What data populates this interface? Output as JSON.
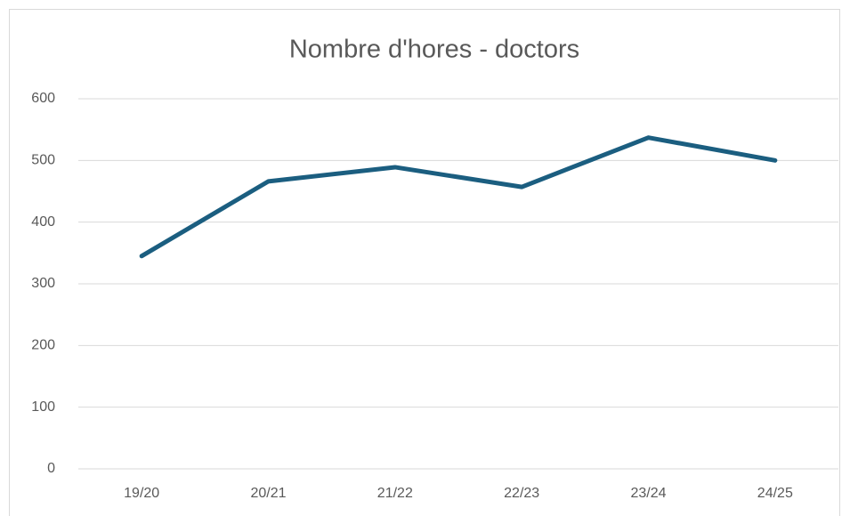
{
  "chart_data": {
    "type": "line",
    "title": "Nombre d'hores - doctors",
    "categories": [
      "19/20",
      "20/21",
      "21/22",
      "22/23",
      "23/24",
      "24/25"
    ],
    "series": [
      {
        "name": "doctors",
        "color": "#1b5e80",
        "values": [
          345,
          466,
          489,
          457,
          537,
          500
        ]
      }
    ],
    "ylim": [
      0,
      600
    ],
    "yticks": [
      0,
      100,
      200,
      300,
      400,
      500,
      600
    ],
    "grid": true
  }
}
